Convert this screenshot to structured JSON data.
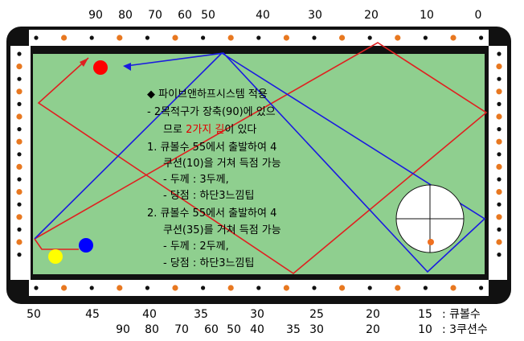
{
  "top_scale": [
    "90",
    "80",
    "70",
    "60",
    "50",
    "40",
    "30",
    "20",
    "10",
    "0"
  ],
  "bottom_scale_cue": [
    "50",
    "45",
    "40",
    "35",
    "30",
    "25",
    "20"
  ],
  "bottom_scale_cushion": [
    {
      "text": "90",
      "color": "#e00000"
    },
    {
      "text": "80",
      "color": "#000000"
    },
    {
      "text": "70",
      "color": "#e00000"
    },
    {
      "text": "60",
      "color": "#000000"
    },
    {
      "text": "50",
      "color": "#e00000"
    },
    {
      "text": "40",
      "color": "#000000"
    },
    {
      "text": "35",
      "color": "#e00000"
    },
    {
      "text": "30",
      "color": "#000000"
    },
    {
      "text": "20",
      "color": "#000000"
    }
  ],
  "legend": {
    "cue_value": "15",
    "cue_label": ":  큐볼수",
    "cushion_value": "10",
    "cushion_label": ":  3쿠션수"
  },
  "notes": {
    "title": "◆ 파이브앤하프시스템 적용",
    "line1": "-  2목적구가  장축(90)에  있으",
    "line2_a": "므로  ",
    "line2_red": "2가지 길",
    "line2_b": "이 있다",
    "line3": "1.  큐볼수  55에서  출발하여  4",
    "line4": "쿠션(10)을 거쳐 득점 가능",
    "line5": "-  두께 : 3두께,",
    "line6": "-  당점 : 하단3느낌팁",
    "line7": "2.  큐볼수  55에서  출발하여  4",
    "line8": "쿠션(35)를 거쳐 득점 가능",
    "line9": "-  두께 : 2두께,",
    "line10": "-  당점 : 하단3느낌팁"
  },
  "colors": {
    "felt": "#8fcf8f",
    "rail": "#ffffff",
    "frame": "#111111",
    "diamond": "#e87820",
    "path_red": "#e02020",
    "path_blue": "#1a1ae0",
    "ball_red": "#ff0000",
    "ball_blue": "#0000ff",
    "ball_yellow": "#ffff00"
  }
}
